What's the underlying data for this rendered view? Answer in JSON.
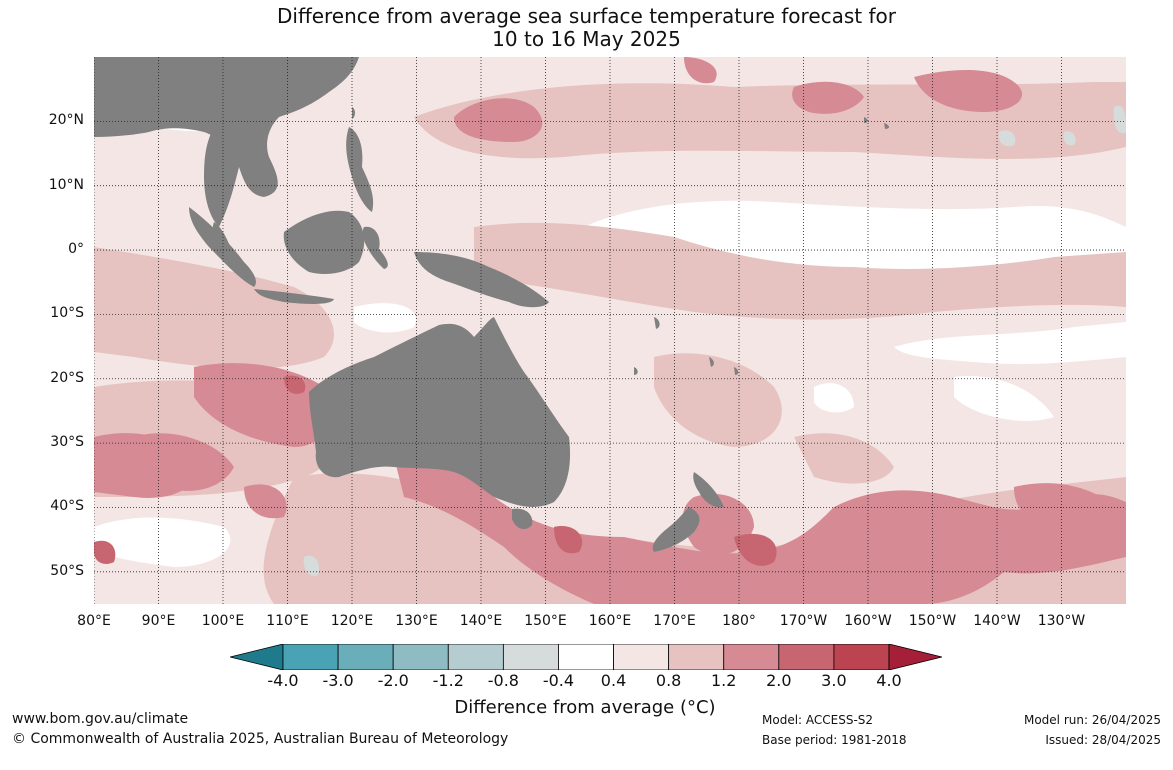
{
  "title": {
    "line1": "Difference from average sea surface temperature forecast for",
    "line2": "10 to 16 May 2025"
  },
  "map": {
    "lon_range": [
      80,
      240
    ],
    "lat_range": [
      -55,
      30
    ],
    "lat_labels": [
      "20°N",
      "10°N",
      "0°",
      "10°S",
      "20°S",
      "30°S",
      "40°S",
      "50°S"
    ],
    "lon_labels": [
      "80°E",
      "90°E",
      "100°E",
      "110°E",
      "120°E",
      "130°E",
      "140°E",
      "150°E",
      "160°E",
      "170°E",
      "180°",
      "170°W",
      "160°W",
      "150°W",
      "140°W",
      "130°W"
    ],
    "land_color": "#808080",
    "gridlines": true
  },
  "colorbar": {
    "tick_labels": [
      "-4.0",
      "-3.0",
      "-2.0",
      "-1.2",
      "-0.8",
      "-0.4",
      "0.4",
      "0.8",
      "1.2",
      "2.0",
      "3.0",
      "4.0"
    ],
    "colors": [
      "#1f7a8c",
      "#4aa3b5",
      "#6aaeba",
      "#8fbcc3",
      "#b5cdd0",
      "#d6dcdc",
      "#ffffff",
      "#f4e6e5",
      "#e6c3c0",
      "#d68a93",
      "#c76670",
      "#bb4450",
      "#a51f38"
    ],
    "title": "Difference from average (°C)"
  },
  "footer": {
    "website": "www.bom.gov.au/climate",
    "copyright": "© Commonwealth of Australia 2025, Australian Bureau of Meteorology",
    "model": "Model: ACCESS-S2",
    "base_period": "Base period: 1981-2018",
    "model_run": "Model run: 26/04/2025",
    "issued": "Issued: 28/04/2025"
  }
}
